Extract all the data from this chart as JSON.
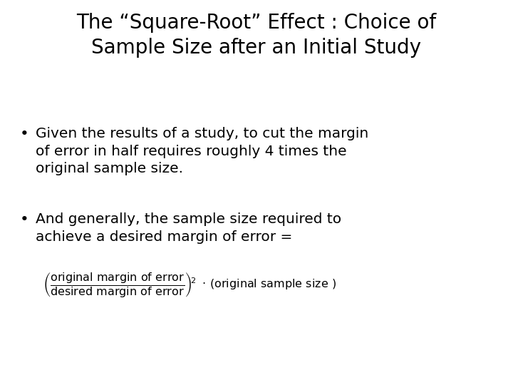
{
  "title_line1": "The “Square-Root” Effect : Choice of",
  "title_line2": "Sample Size after an Initial Study",
  "bullet1_line1": "Given the results of a study, to cut the margin",
  "bullet1_line2": "of error in half requires roughly 4 times the",
  "bullet1_line3": "original sample size.",
  "bullet2_line1": "And generally, the sample size required to",
  "bullet2_line2": "achieve a desired margin of error =",
  "formula_numerator": "original margin of error",
  "formula_denominator": "desired margin of error",
  "formula_suffix": "· (original sample size )",
  "background_color": "#ffffff",
  "text_color": "#000000",
  "title_fontsize": 20,
  "body_fontsize": 14.5,
  "formula_fontsize": 11.5
}
